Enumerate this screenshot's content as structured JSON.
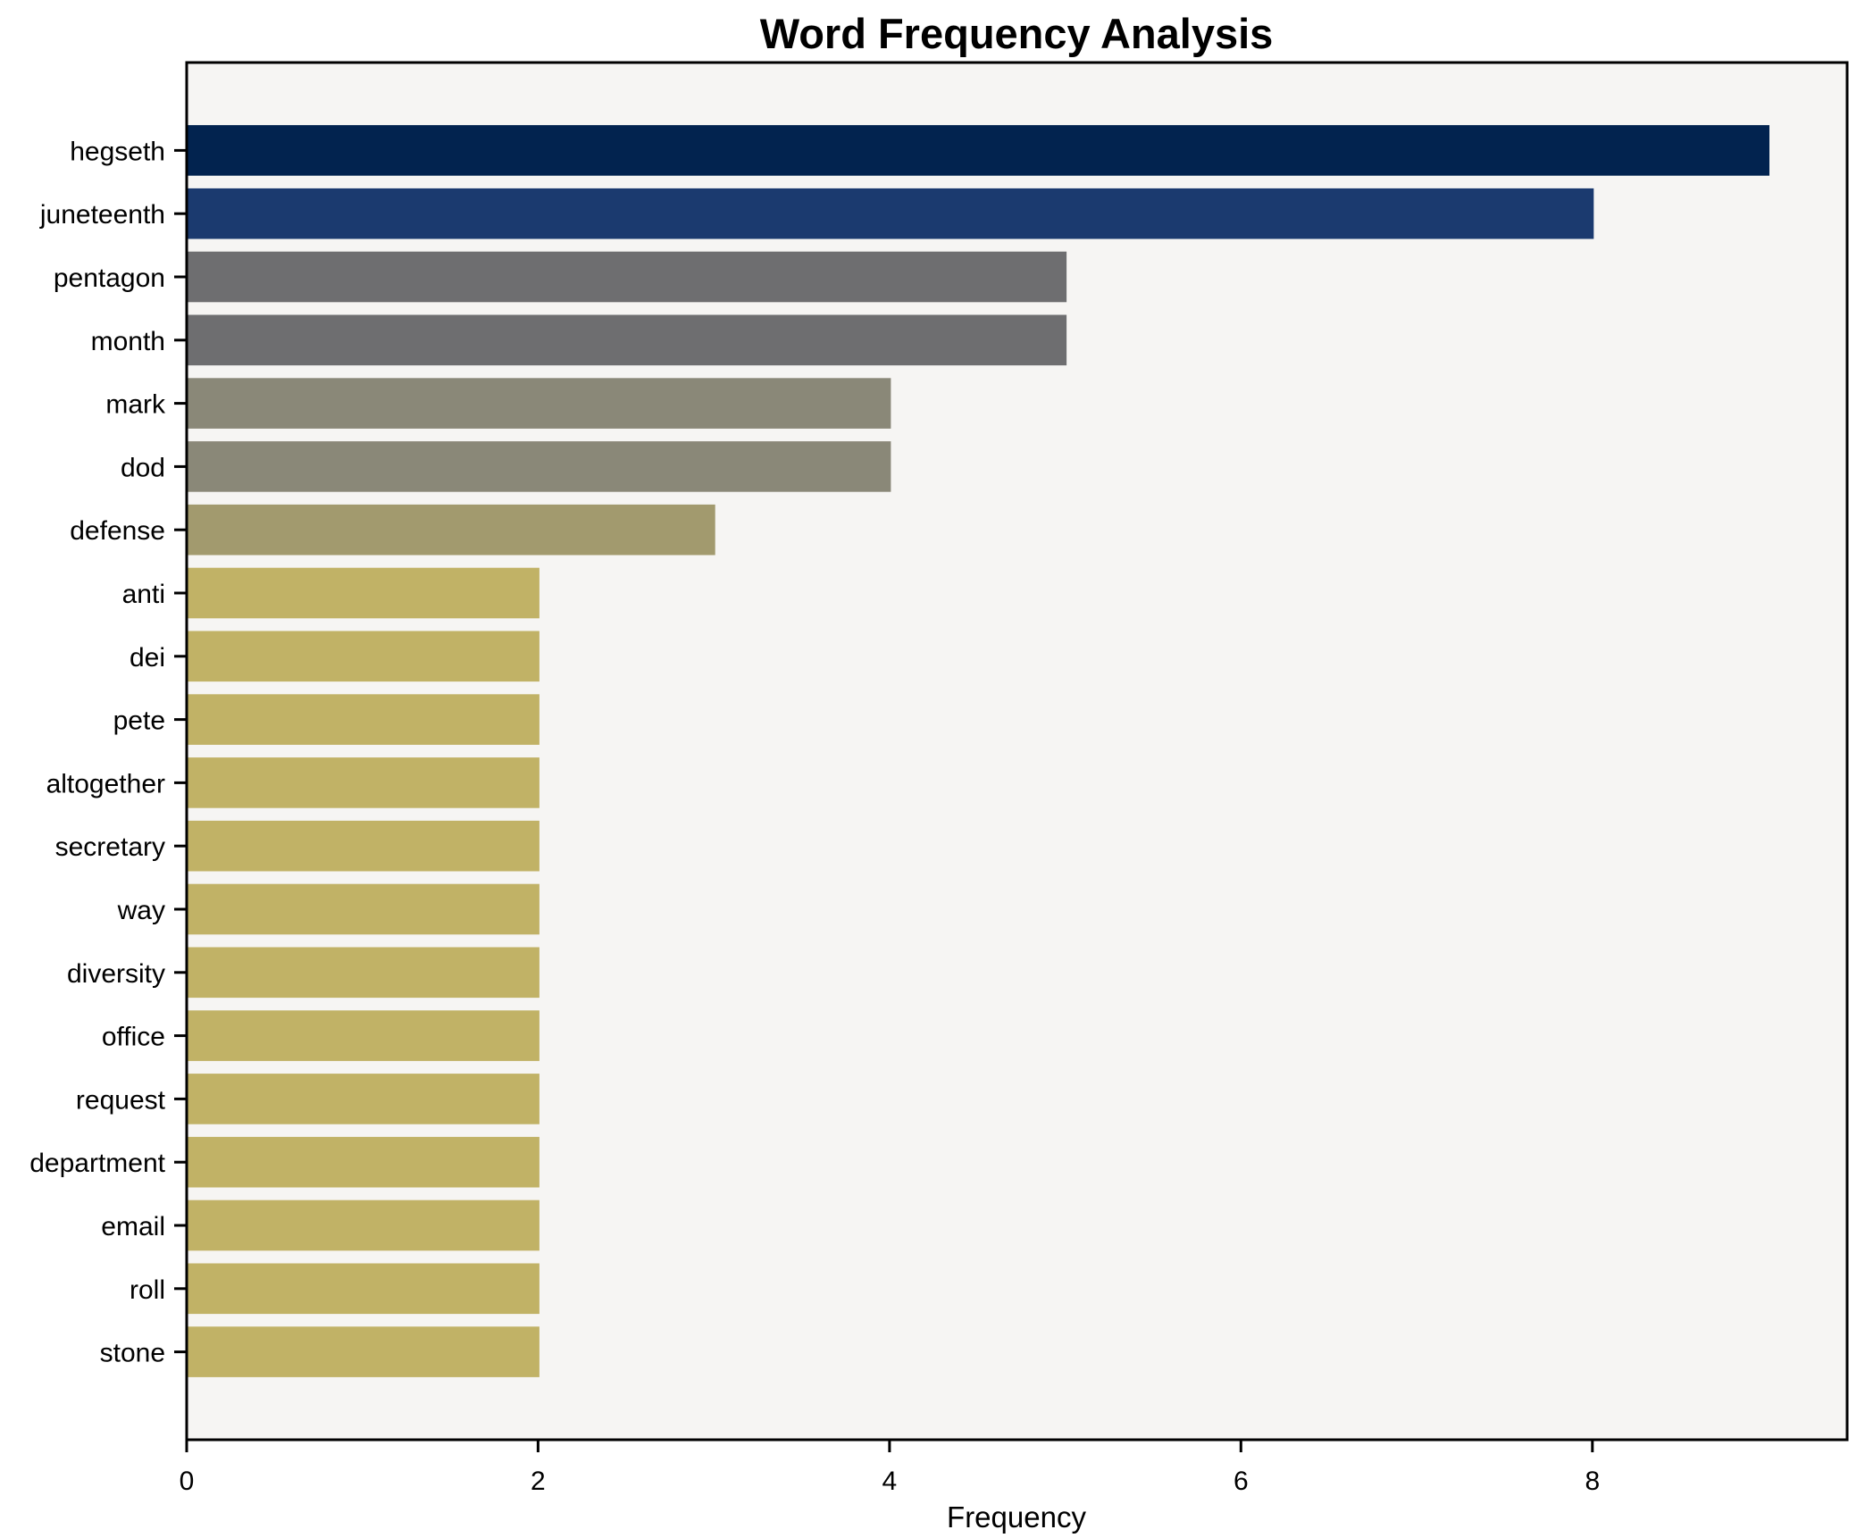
{
  "chart_data": {
    "type": "bar",
    "orientation": "horizontal",
    "title": "Word Frequency Analysis",
    "xlabel": "Frequency",
    "ylabel": "",
    "categories": [
      "hegseth",
      "juneteenth",
      "pentagon",
      "month",
      "mark",
      "dod",
      "defense",
      "anti",
      "dei",
      "pete",
      "altogether",
      "secretary",
      "way",
      "diversity",
      "office",
      "request",
      "department",
      "email",
      "roll",
      "stone"
    ],
    "values": [
      9,
      8,
      5,
      5,
      4,
      4,
      3,
      2,
      2,
      2,
      2,
      2,
      2,
      2,
      2,
      2,
      2,
      2,
      2,
      2
    ],
    "bar_colors": [
      "#02234f",
      "#1b3a6f",
      "#6e6e70",
      "#6e6e70",
      "#8a8878",
      "#8a8878",
      "#a29a6e",
      "#c1b266",
      "#c1b266",
      "#c1b266",
      "#c1b266",
      "#c1b266",
      "#c1b266",
      "#c1b266",
      "#c1b266",
      "#c1b266",
      "#c1b266",
      "#c1b266",
      "#c1b266",
      "#c1b266"
    ],
    "xticks": [
      0,
      2,
      4,
      6,
      8
    ],
    "xlim": [
      0,
      9.45
    ],
    "bar_thickness_ratio": 0.8,
    "grid": false,
    "legend": false,
    "plot_bg": "#f6f5f3",
    "spine_color": "#000000",
    "text_color": "#000000"
  }
}
